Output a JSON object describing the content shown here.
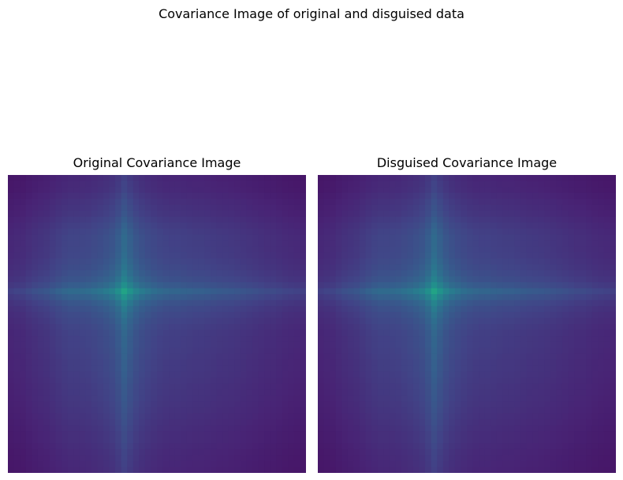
{
  "figure": {
    "title": "Covariance Image of original and disguised data"
  },
  "chart_data": [
    {
      "type": "heatmap",
      "title": "Original Covariance Image",
      "colormap": "viridis",
      "axes": "off",
      "grid": false,
      "variances": [
        0.085,
        0.095,
        0.1,
        0.12,
        0.14,
        0.155,
        0.17,
        0.2,
        0.23,
        0.26,
        0.28,
        0.28,
        0.29,
        0.3,
        0.33,
        0.36,
        0.4,
        0.46,
        0.58,
        0.8,
        0.62,
        0.48,
        0.4,
        0.35,
        0.31,
        0.28,
        0.26,
        0.25,
        0.25,
        0.24,
        0.23,
        0.22,
        0.22,
        0.21,
        0.2,
        0.19,
        0.185,
        0.18,
        0.17,
        0.16,
        0.15,
        0.14,
        0.13,
        0.12,
        0.12,
        0.11,
        0.1,
        0.095,
        0.09,
        0.085
      ]
    },
    {
      "type": "heatmap",
      "title": "Disguised Covariance Image",
      "colormap": "viridis",
      "axes": "off",
      "grid": false,
      "variances": [
        0.085,
        0.095,
        0.1,
        0.12,
        0.14,
        0.155,
        0.17,
        0.2,
        0.23,
        0.26,
        0.28,
        0.28,
        0.29,
        0.3,
        0.33,
        0.36,
        0.4,
        0.46,
        0.58,
        0.8,
        0.62,
        0.48,
        0.4,
        0.35,
        0.31,
        0.28,
        0.26,
        0.25,
        0.25,
        0.24,
        0.23,
        0.22,
        0.22,
        0.21,
        0.2,
        0.19,
        0.185,
        0.18,
        0.17,
        0.16,
        0.15,
        0.14,
        0.13,
        0.12,
        0.12,
        0.11,
        0.1,
        0.095,
        0.09,
        0.085
      ]
    }
  ],
  "colors": {
    "background": "#ffffff",
    "colormap_low": "#440154",
    "colormap_peak": "#21918c"
  }
}
